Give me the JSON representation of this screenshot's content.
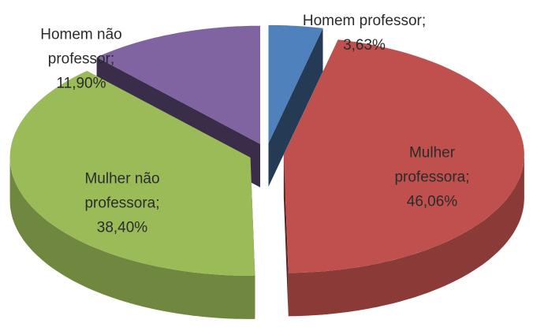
{
  "chart_data": {
    "type": "pie3d",
    "categories": [
      "Homem professor",
      "Mulher professora",
      "Mulher não professora",
      "Homem não professor"
    ],
    "values": [
      3.63,
      46.06,
      38.4,
      11.9
    ],
    "value_labels": [
      "3,63%",
      "46,06%",
      "38,40%",
      "11,90%"
    ],
    "label_separator": ";",
    "colors": [
      "#4f81bd",
      "#c0504d",
      "#9bbb59",
      "#8064a2"
    ],
    "exploded": true
  }
}
